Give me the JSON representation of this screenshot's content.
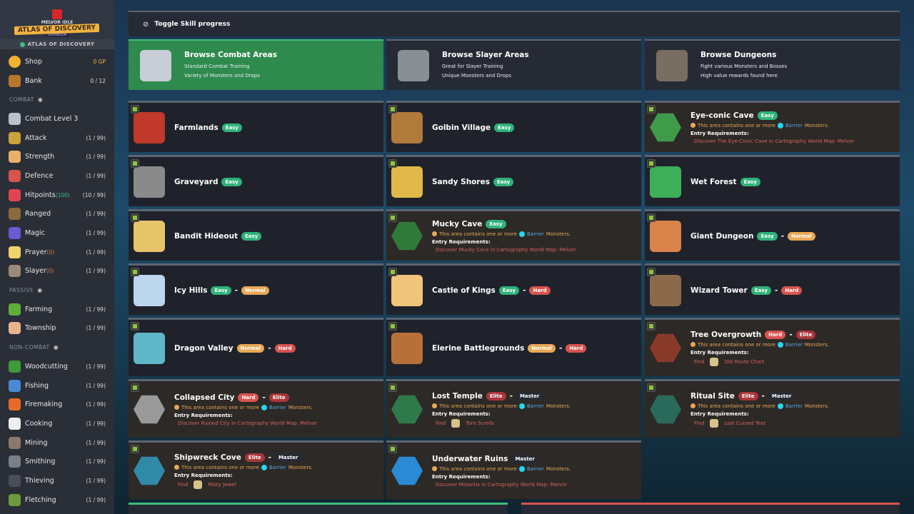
{
  "sidebar": {
    "logo": {
      "line1": "MELVOR IDLE",
      "line2": "ATLAS OF DISCOVERY",
      "line3": "EXPANSION"
    },
    "expansion_label": "ATLAS OF DISCOVERY",
    "shop": {
      "label": "Shop",
      "value": "0 GP"
    },
    "bank": {
      "label": "Bank",
      "value": "0 / 12"
    },
    "sections": [
      {
        "title": "COMBAT",
        "items": [
          {
            "label": "Combat Level 3",
            "sub": "",
            "value": "",
            "color": "#b9c2cc"
          },
          {
            "label": "Attack",
            "sub": "",
            "value": "(1 / 99)",
            "color": "#c9a23a"
          },
          {
            "label": "Strength",
            "sub": "",
            "value": "(1 / 99)",
            "color": "#e9b06a"
          },
          {
            "label": "Defence",
            "sub": "",
            "value": "(1 / 99)",
            "color": "#d9534f"
          },
          {
            "label": "Hitpoints",
            "sub": "(100)",
            "subg": true,
            "value": "(10 / 99)",
            "color": "#e0454f"
          },
          {
            "label": "Ranged",
            "sub": "",
            "value": "(1 / 99)",
            "color": "#8a6a3a"
          },
          {
            "label": "Magic",
            "sub": "",
            "value": "(1 / 99)",
            "color": "#6b5bd3"
          },
          {
            "label": "Prayer",
            "sub": "(0)",
            "value": "(1 / 99)",
            "color": "#f1d36b"
          },
          {
            "label": "Slayer",
            "sub": "(0)",
            "value": "(1 / 99)",
            "color": "#9a8a7a"
          }
        ]
      },
      {
        "title": "PASSIVE",
        "items": [
          {
            "label": "Farming",
            "sub": "",
            "value": "(1 / 99)",
            "color": "#5fae3a"
          },
          {
            "label": "Township",
            "sub": "",
            "value": "(1 / 99)",
            "color": "#e8b58a"
          }
        ]
      },
      {
        "title": "NON-COMBAT",
        "items": [
          {
            "label": "Woodcutting",
            "sub": "",
            "value": "(1 / 99)",
            "color": "#3e9b3a"
          },
          {
            "label": "Fishing",
            "sub": "",
            "value": "(1 / 99)",
            "color": "#4a8ad6"
          },
          {
            "label": "Firemaking",
            "sub": "",
            "value": "(1 / 99)",
            "color": "#e86a2a"
          },
          {
            "label": "Cooking",
            "sub": "",
            "value": "(1 / 99)",
            "color": "#eeeeee"
          },
          {
            "label": "Mining",
            "sub": "",
            "value": "(1 / 99)",
            "color": "#8a7a6a"
          },
          {
            "label": "Smithing",
            "sub": "",
            "value": "(1 / 99)",
            "color": "#7a7f8a"
          },
          {
            "label": "Thieving",
            "sub": "",
            "value": "(1 / 99)",
            "color": "#4a4e5a"
          },
          {
            "label": "Fletching",
            "sub": "",
            "value": "(1 / 99)",
            "color": "#6a9a3a"
          }
        ]
      }
    ]
  },
  "toggle_label": "Toggle Skill progress",
  "browse": [
    {
      "title": "Browse Combat Areas",
      "lines": [
        "Standard Combat Training",
        "Variety of Monsters and Drops"
      ],
      "active": true,
      "color": "#c9ced6"
    },
    {
      "title": "Browse Slayer Areas",
      "lines": [
        "Great for Slayer Training",
        "Unique Monsters and Drops"
      ],
      "active": false,
      "color": "#8a8f96"
    },
    {
      "title": "Browse Dungeons",
      "lines": [
        "Fight various Monsters and Bosses",
        "High value rewards found here"
      ],
      "active": false,
      "color": "#7a6e60"
    }
  ],
  "barrier_text": {
    "pre": "This area contains one or more",
    "barrier": "Barrier",
    "post": "Monsters.",
    "req": "Entry Requirements:",
    "find": "Find"
  },
  "areas": [
    {
      "name": "Farmlands",
      "diff": [
        "Easy"
      ],
      "color": "#c0392b"
    },
    {
      "name": "Golbin Village",
      "diff": [
        "Easy"
      ],
      "color": "#b07a3a"
    },
    {
      "name": "Eye-conic Cave",
      "diff": [
        "Easy"
      ],
      "locked": true,
      "req": "Discover The Eye-Conic Cave in Cartography World Map: Melvor",
      "color": "#3f9b4a"
    },
    {
      "name": "Graveyard",
      "diff": [
        "Easy"
      ],
      "color": "#8a8a8a"
    },
    {
      "name": "Sandy Shores",
      "diff": [
        "Easy"
      ],
      "color": "#e2b84a"
    },
    {
      "name": "Wet Forest",
      "diff": [
        "Easy"
      ],
      "color": "#3fae5a"
    },
    {
      "name": "Bandit Hideout",
      "diff": [
        "Easy"
      ],
      "color": "#e6c46a"
    },
    {
      "name": "Mucky Cave",
      "diff": [
        "Easy"
      ],
      "locked": true,
      "req": "Discover Mucky Cave in Cartography World Map: Melvor",
      "color": "#2f7a3a"
    },
    {
      "name": "Giant Dungeon",
      "diff": [
        "Easy",
        "Normal"
      ],
      "color": "#d9824a"
    },
    {
      "name": "Icy Hills",
      "diff": [
        "Easy",
        "Normal"
      ],
      "color": "#bcd6ee"
    },
    {
      "name": "Castle of Kings",
      "diff": [
        "Easy",
        "Hard"
      ],
      "color": "#f0c47a"
    },
    {
      "name": "Wizard Tower",
      "diff": [
        "Easy",
        "Hard"
      ],
      "color": "#8a6a4a"
    },
    {
      "name": "Dragon Valley",
      "diff": [
        "Normal",
        "Hard"
      ],
      "color": "#5fb6c8"
    },
    {
      "name": "Elerine Battlegrounds",
      "diff": [
        "Normal",
        "Hard"
      ],
      "color": "#b8703a"
    },
    {
      "name": "Tree Overgrowth",
      "diff": [
        "Hard",
        "Elite"
      ],
      "locked": true,
      "find": "Old Route Chart",
      "color": "#8a3a2a"
    },
    {
      "name": "Collapsed City",
      "diff": [
        "Hard",
        "Elite"
      ],
      "locked": true,
      "req": "Discover Ruined City in Cartography World Map: Melvor",
      "color": "#9a9a9a"
    },
    {
      "name": "Lost Temple",
      "diff": [
        "Elite",
        "Master"
      ],
      "locked": true,
      "find": "Torn Scrolls",
      "color": "#2f7a4a"
    },
    {
      "name": "Ritual Site",
      "diff": [
        "Elite",
        "Master"
      ],
      "locked": true,
      "find": "Lost Cursed Text",
      "color": "#2a6a5a"
    },
    {
      "name": "Shipwreck Cove",
      "diff": [
        "Elite",
        "Master"
      ],
      "locked": true,
      "find": "Misty Jewel",
      "color": "#2f8aa8"
    },
    {
      "name": "Underwater Ruins",
      "diff": [
        "Master"
      ],
      "locked": true,
      "req": "Discover Melantis in Cartography World Map: Melvor",
      "color": "#2a8ad6"
    }
  ]
}
